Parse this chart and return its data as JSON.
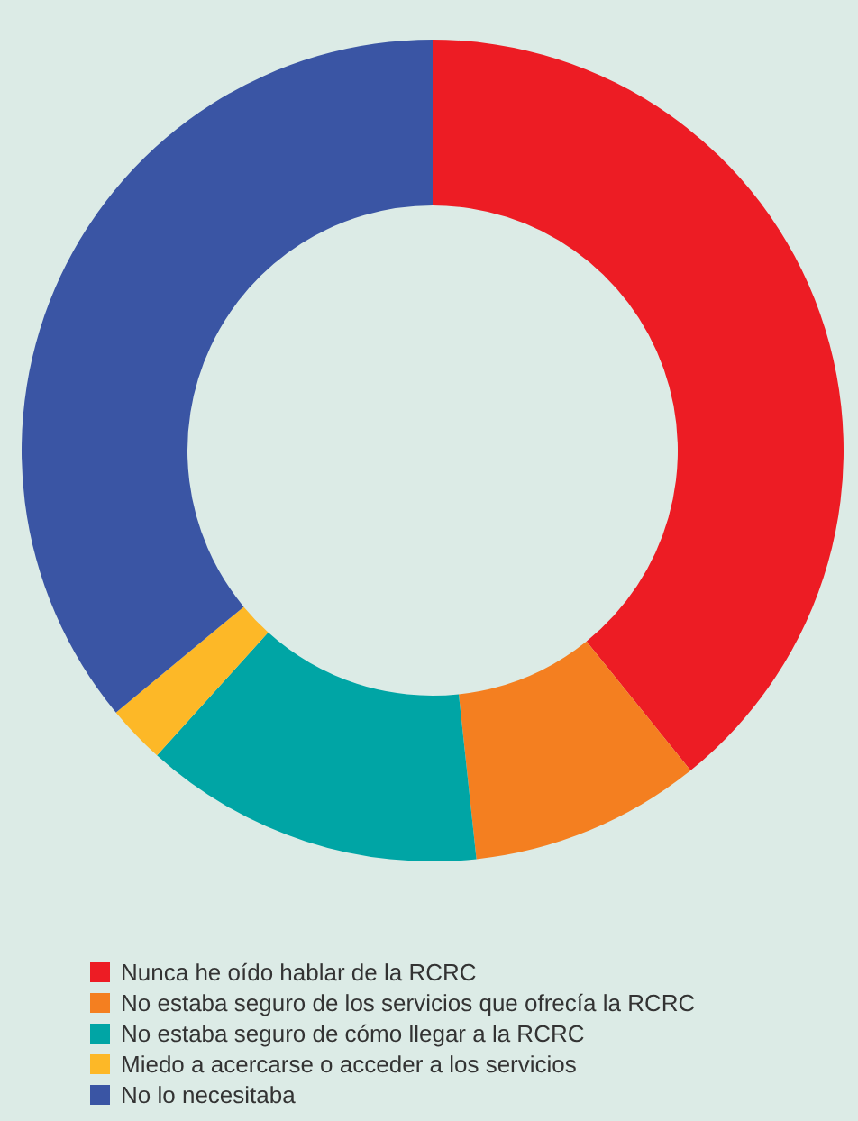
{
  "chart_data": {
    "type": "donut",
    "categories": [
      "Nunca he oído hablar de la RCRC",
      "No estaba seguro de los servicios que ofrecía la RCRC",
      "No estaba seguro de cómo llegar a la RCRC",
      "Miedo a acercarse o acceder a los servicios",
      "No lo necesitaba"
    ],
    "values": [
      39.2,
      9.1,
      13.4,
      2.3,
      36
    ],
    "colors": [
      "#ed1c24",
      "#f47f20",
      "#00a5a5",
      "#fdb827",
      "#3a55a4"
    ],
    "legend": "bottom"
  }
}
